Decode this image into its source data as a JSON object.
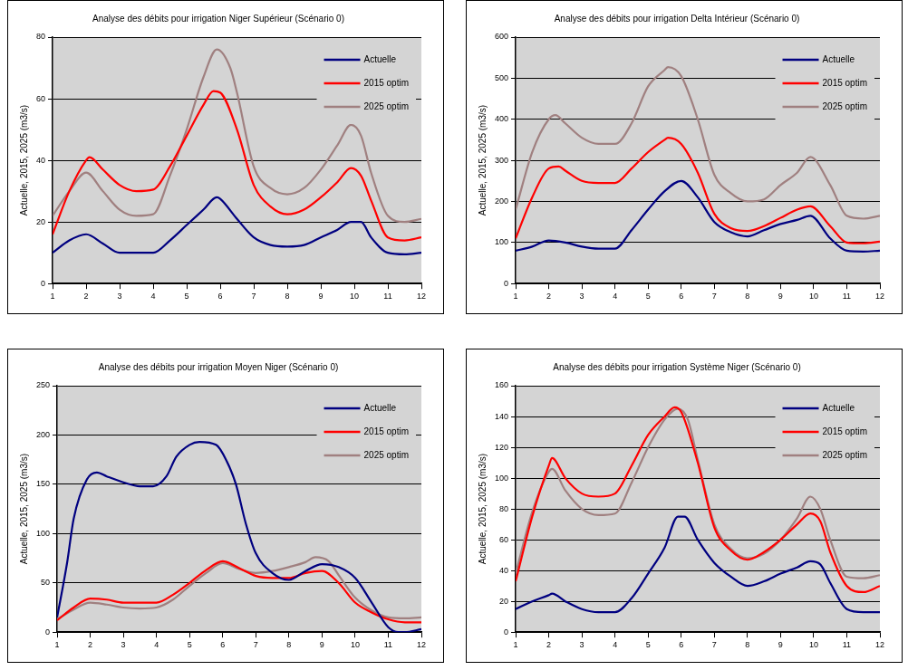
{
  "chart_data": [
    {
      "type": "line",
      "title": "Analyse des débits pour irrigation Niger Supérieur (Scénario 0)",
      "ylabel": "Actuelle, 2015, 2025 (m3/s)",
      "xlim": [
        1,
        12
      ],
      "xticks": [
        1,
        2,
        3,
        4,
        5,
        6,
        7,
        8,
        9,
        10,
        11,
        12
      ],
      "ylim": [
        0,
        80
      ],
      "yticks": [
        0,
        20,
        40,
        60,
        80
      ],
      "grid": "y",
      "legend": "top right",
      "marker": "none",
      "line_style": "solid",
      "series": [
        {
          "name": "Actuelle",
          "color": "#000080",
          "x": [
            1,
            1.5,
            2,
            2.5,
            3,
            3.5,
            4,
            4.5,
            5,
            5.5,
            5.9,
            6,
            6.5,
            7,
            7.5,
            8,
            8.5,
            9,
            9.5,
            9.9,
            10.2,
            10.5,
            11,
            11.5,
            12
          ],
          "values": [
            10,
            14,
            16,
            13,
            10,
            10,
            10,
            14,
            19,
            24,
            28,
            27.5,
            21,
            15,
            12.5,
            12,
            12.5,
            15,
            17.5,
            20,
            20,
            15,
            10,
            9.5,
            10
          ]
        },
        {
          "name": "2015 optim",
          "color": "#ff0000",
          "x": [
            1,
            1.5,
            2,
            2.1,
            2.5,
            3,
            3.5,
            4,
            4.5,
            5,
            5.5,
            5.8,
            6,
            6.5,
            7,
            7.5,
            8,
            8.5,
            9,
            9.5,
            9.9,
            10.2,
            10.5,
            11,
            11.5,
            12
          ],
          "values": [
            16,
            30,
            40,
            41,
            37,
            32,
            30,
            30.5,
            38,
            48,
            58,
            62.5,
            62,
            50,
            32,
            25,
            22.5,
            24,
            28,
            33,
            37.5,
            35,
            27,
            15,
            14,
            15
          ]
        },
        {
          "name": "2025 optim",
          "color": "#a08080",
          "x": [
            1,
            1.5,
            2,
            2.5,
            3,
            3.5,
            4,
            4.5,
            5,
            5.5,
            5.9,
            6.3,
            6.5,
            7,
            7.5,
            8,
            8.5,
            9,
            9.5,
            9.9,
            10.2,
            10.5,
            11,
            11.5,
            12
          ],
          "values": [
            22,
            30,
            36,
            30,
            24,
            22,
            22.5,
            35,
            50,
            67,
            76,
            70,
            62,
            38,
            31,
            29,
            31,
            37,
            45,
            51.5,
            48,
            36,
            22,
            20,
            21
          ]
        }
      ]
    },
    {
      "type": "line",
      "title": "Analyse des débits pour irrigation Delta Intérieur (Scénario 0)",
      "ylabel": "Actuelle, 2015, 2025 (m3/s)",
      "xlim": [
        1,
        12
      ],
      "xticks": [
        1,
        2,
        3,
        4,
        5,
        6,
        7,
        8,
        9,
        10,
        11,
        12
      ],
      "ylim": [
        0,
        600
      ],
      "yticks": [
        0,
        100,
        200,
        300,
        400,
        500,
        600
      ],
      "grid": "y",
      "legend": "top right",
      "marker": "none",
      "line_style": "solid",
      "series": [
        {
          "name": "Actuelle",
          "color": "#000080",
          "x": [
            1,
            1.5,
            2,
            2.5,
            3,
            3.5,
            4,
            4.5,
            5,
            5.5,
            6,
            6.5,
            7,
            7.5,
            8,
            8.5,
            9,
            9.5,
            9.9,
            10.5,
            11,
            11.5,
            12
          ],
          "values": [
            80,
            90,
            105,
            100,
            90,
            85,
            85,
            130,
            180,
            225,
            250,
            210,
            150,
            125,
            115,
            130,
            145,
            155,
            165,
            110,
            80,
            78,
            80
          ]
        },
        {
          "name": "2015 optim",
          "color": "#ff0000",
          "x": [
            1,
            1.5,
            2,
            2.3,
            2.5,
            3,
            3.5,
            4,
            4.5,
            5,
            5.5,
            5.6,
            6,
            6.5,
            7,
            7.5,
            8,
            8.5,
            9,
            9.5,
            9.9,
            10.5,
            11,
            11.5,
            12
          ],
          "values": [
            110,
            210,
            280,
            285,
            275,
            250,
            245,
            245,
            280,
            320,
            350,
            355,
            340,
            270,
            170,
            135,
            128,
            140,
            160,
            180,
            188,
            140,
            100,
            98,
            102
          ]
        },
        {
          "name": "2025 optim",
          "color": "#a08080",
          "x": [
            1,
            1.5,
            2,
            2.2,
            2.5,
            3,
            3.5,
            4,
            4.5,
            5,
            5.5,
            5.6,
            6,
            6.5,
            7,
            7.5,
            8,
            8.5,
            9,
            9.5,
            9.9,
            10.5,
            11,
            11.5,
            12
          ],
          "values": [
            180,
            320,
            400,
            410,
            390,
            355,
            340,
            340,
            390,
            480,
            520,
            527,
            505,
            400,
            265,
            220,
            200,
            205,
            240,
            270,
            308,
            240,
            165,
            158,
            165
          ]
        }
      ]
    },
    {
      "type": "line",
      "title": "Analyse des débits pour irrigation Moyen Niger (Scénario 0)",
      "ylabel": "Actuelle, 2015, 2025 (m3/s)",
      "xlim": [
        1,
        12
      ],
      "xticks": [
        1,
        2,
        3,
        4,
        5,
        6,
        7,
        8,
        9,
        10,
        11,
        12
      ],
      "ylim": [
        0,
        250
      ],
      "yticks": [
        0,
        50,
        100,
        150,
        200,
        250
      ],
      "grid": "y",
      "legend": "top right",
      "marker": "none",
      "line_style": "solid",
      "series": [
        {
          "name": "Actuelle",
          "color": "#000080",
          "x": [
            1,
            1.3,
            1.5,
            1.9,
            2.2,
            2.5,
            3,
            3.5,
            3.9,
            4.3,
            4.6,
            5,
            5.3,
            5.8,
            6.1,
            6.4,
            6.7,
            7,
            7.5,
            8,
            8.5,
            9,
            9.5,
            10,
            10.5,
            11,
            11.3,
            11.5,
            12
          ],
          "values": [
            15,
            70,
            115,
            155,
            162,
            158,
            152,
            148,
            148,
            158,
            178,
            190,
            193,
            190,
            175,
            150,
            110,
            80,
            60,
            53,
            62,
            69,
            66,
            55,
            30,
            5,
            0,
            0,
            3
          ]
        },
        {
          "name": "2015 optim",
          "color": "#ff0000",
          "x": [
            1,
            1.5,
            2,
            2.5,
            3,
            3.5,
            4,
            4.5,
            5,
            5.5,
            6,
            6.5,
            7,
            7.5,
            8,
            8.5,
            9,
            9.5,
            10,
            10.5,
            11,
            11.5,
            12
          ],
          "values": [
            12,
            25,
            34,
            33,
            30,
            30,
            30,
            38,
            50,
            63,
            72,
            65,
            57,
            55,
            55,
            60,
            62,
            50,
            30,
            20,
            13,
            10,
            10
          ]
        },
        {
          "name": "2025 optim",
          "color": "#a08080",
          "x": [
            1,
            1.5,
            2,
            2.5,
            3,
            3.5,
            4,
            4.5,
            5,
            5.5,
            6,
            6.5,
            7,
            7.5,
            8,
            8.5,
            8.8,
            9.2,
            9.5,
            10,
            10.5,
            11,
            11.5,
            12
          ],
          "values": [
            13,
            23,
            30,
            28,
            25,
            24,
            25,
            33,
            47,
            60,
            70,
            64,
            60,
            62,
            66,
            71,
            76,
            72,
            58,
            35,
            22,
            15,
            14,
            15
          ]
        }
      ]
    },
    {
      "type": "line",
      "title": "Analyse des débits pour irrigation Système Niger (Scénario 0)",
      "ylabel": "Actuelle, 2015, 2025 (m3/s)",
      "xlim": [
        1,
        12
      ],
      "xticks": [
        1,
        2,
        3,
        4,
        5,
        6,
        7,
        8,
        9,
        10,
        11,
        12
      ],
      "ylim": [
        0,
        160
      ],
      "yticks": [
        0,
        20,
        40,
        60,
        80,
        100,
        120,
        140,
        160
      ],
      "grid": "y",
      "legend": "top right",
      "marker": "none",
      "line_style": "solid",
      "series": [
        {
          "name": "Actuelle",
          "color": "#000080",
          "x": [
            1,
            1.5,
            2,
            2.1,
            2.5,
            3,
            3.5,
            4,
            4.5,
            5,
            5.5,
            5.9,
            6.1,
            6.5,
            7,
            7.5,
            8,
            8.5,
            9,
            9.5,
            9.9,
            10.2,
            10.5,
            11,
            11.5,
            12
          ],
          "values": [
            15,
            20,
            24,
            25,
            20,
            15,
            13,
            13,
            22,
            38,
            55,
            75,
            75,
            60,
            45,
            36,
            30,
            33,
            38,
            42,
            46,
            44,
            32,
            15,
            13,
            13
          ]
        },
        {
          "name": "2015 optim",
          "color": "#ff0000",
          "x": [
            1,
            1.5,
            2,
            2.1,
            2.5,
            3,
            3.5,
            4,
            4.5,
            5,
            5.5,
            5.8,
            6,
            6.5,
            7,
            7.5,
            8,
            8.5,
            9,
            9.5,
            9.9,
            10.2,
            10.5,
            11,
            11.5,
            12
          ],
          "values": [
            33,
            75,
            108,
            113,
            100,
            90,
            88,
            90,
            108,
            128,
            140,
            146,
            143,
            110,
            68,
            53,
            47,
            52,
            60,
            70,
            77,
            72,
            52,
            30,
            26,
            30
          ]
        },
        {
          "name": "2025 optim",
          "color": "#a08080",
          "x": [
            1,
            1.5,
            2,
            2.1,
            2.5,
            3,
            3.5,
            4,
            4.5,
            5,
            5.5,
            5.9,
            6.2,
            6.5,
            7,
            7.5,
            8,
            8.5,
            9,
            9.5,
            9.9,
            10.2,
            10.5,
            11,
            11.5,
            12
          ],
          "values": [
            38,
            78,
            104,
            106,
            92,
            80,
            76,
            77,
            97,
            120,
            138,
            145,
            138,
            112,
            70,
            54,
            48,
            51,
            60,
            74,
            88,
            80,
            60,
            36,
            35,
            37
          ]
        }
      ]
    }
  ]
}
